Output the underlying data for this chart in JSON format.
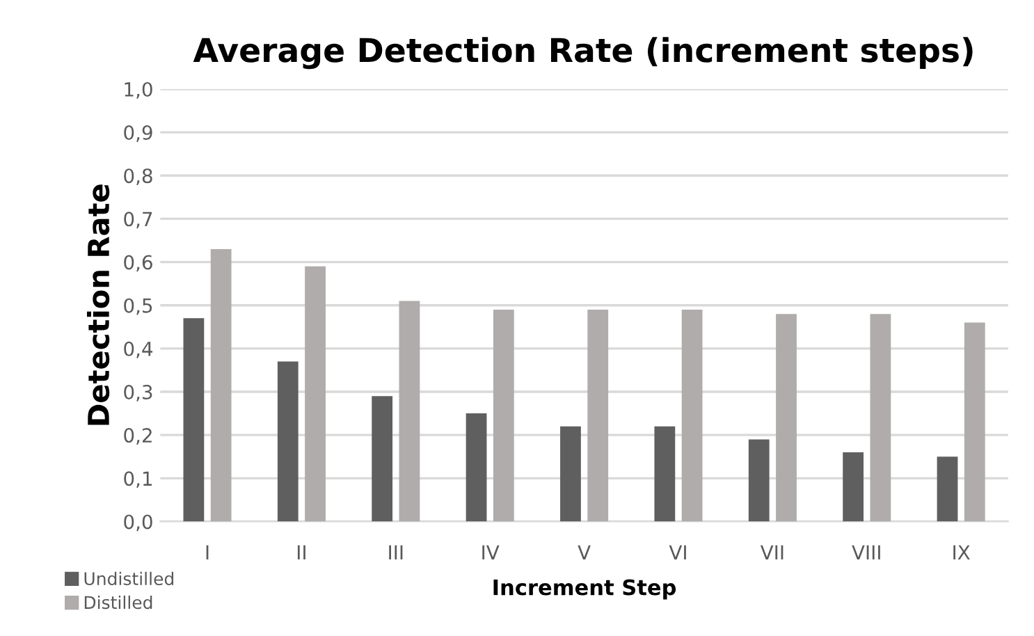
{
  "chart_data": {
    "type": "bar",
    "title": "Average Detection Rate (increment steps)",
    "xlabel": "Increment Step",
    "ylabel": "Detection Rate",
    "categories": [
      "I",
      "II",
      "III",
      "IV",
      "V",
      "VI",
      "VII",
      "VIII",
      "IX"
    ],
    "series": [
      {
        "name": "Undistilled",
        "color": "#5f5f5f",
        "values": [
          0.47,
          0.37,
          0.29,
          0.25,
          0.22,
          0.22,
          0.19,
          0.16,
          0.15
        ]
      },
      {
        "name": "Distilled",
        "color": "#afacab",
        "values": [
          0.63,
          0.59,
          0.51,
          0.49,
          0.49,
          0.49,
          0.48,
          0.48,
          0.46
        ]
      }
    ],
    "ylim": [
      0,
      1
    ],
    "yticks": [
      {
        "value": 0,
        "label": "0,0"
      },
      {
        "value": 0.1,
        "label": "0,1"
      },
      {
        "value": 0.2,
        "label": "0,2"
      },
      {
        "value": 0.3,
        "label": "0,3"
      },
      {
        "value": 0.4,
        "label": "0,4"
      },
      {
        "value": 0.5,
        "label": "0,5"
      },
      {
        "value": 0.6,
        "label": "0,6"
      },
      {
        "value": 0.7,
        "label": "0,7"
      },
      {
        "value": 0.8,
        "label": "0,8"
      },
      {
        "value": 0.9,
        "label": "0,9"
      },
      {
        "value": 1,
        "label": "1,0"
      }
    ],
    "grid": "y",
    "legend": "bottom left"
  }
}
